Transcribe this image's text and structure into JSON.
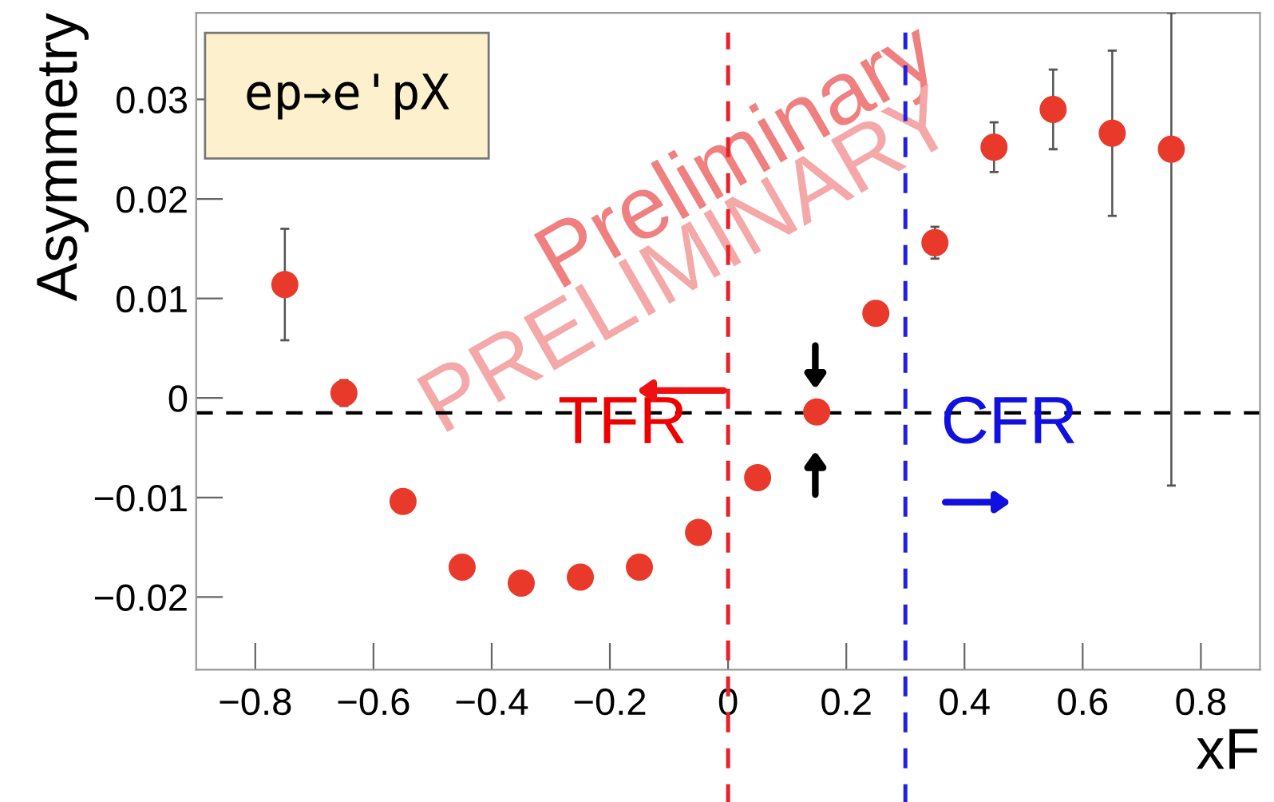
{
  "chart_data": {
    "type": "scatter",
    "xlabel": "xF",
    "ylabel": "Asymmetry",
    "x": [
      -0.75,
      -0.65,
      -0.55,
      -0.45,
      -0.35,
      -0.25,
      -0.15,
      -0.05,
      0.05,
      0.15,
      0.25,
      0.35,
      0.45,
      0.55,
      0.65,
      0.75
    ],
    "values": [
      0.0114,
      0.0005,
      -0.0104,
      -0.017,
      -0.0186,
      -0.018,
      -0.017,
      -0.0135,
      -0.008,
      -0.0014,
      0.0085,
      0.0156,
      0.0252,
      0.029,
      0.0266,
      0.025
    ],
    "errors": [
      0.0056,
      0.0013,
      null,
      null,
      null,
      null,
      null,
      null,
      null,
      null,
      null,
      0.0016,
      0.0025,
      0.004,
      0.0083,
      [
        -0.0088,
        0.0387
      ]
    ],
    "color": "#e8392a",
    "marker": "circle",
    "xlim": [
      -0.9,
      0.9
    ],
    "ylim": [
      -0.0273,
      0.0387
    ],
    "xticks": [
      {
        "value": -0.8,
        "label": "−0.8"
      },
      {
        "value": -0.6,
        "label": "−0.6"
      },
      {
        "value": -0.4,
        "label": "−0.4"
      },
      {
        "value": -0.2,
        "label": "−0.2"
      },
      0,
      0.2,
      0.4,
      0.6,
      0.8
    ],
    "yticks": [
      {
        "value": -0.02,
        "label": "−0.02"
      },
      {
        "value": -0.01,
        "label": "−0.01"
      },
      0,
      0.01,
      0.02,
      0.03
    ],
    "ref_lines": [
      {
        "axis": "y",
        "value": -0.0015,
        "color": "#000000",
        "line_style": "dashed"
      },
      {
        "axis": "x",
        "value": 0,
        "color": "#e8202a",
        "line_style": "dashed"
      },
      {
        "axis": "x",
        "value": 0.3,
        "color": "#2020e0",
        "line_style": "dashed"
      }
    ],
    "annotations": [
      "ep→e'pX",
      "TFR",
      "CFR",
      "Preliminary",
      "PRELIMINARY"
    ],
    "grid": false,
    "legend": false
  }
}
